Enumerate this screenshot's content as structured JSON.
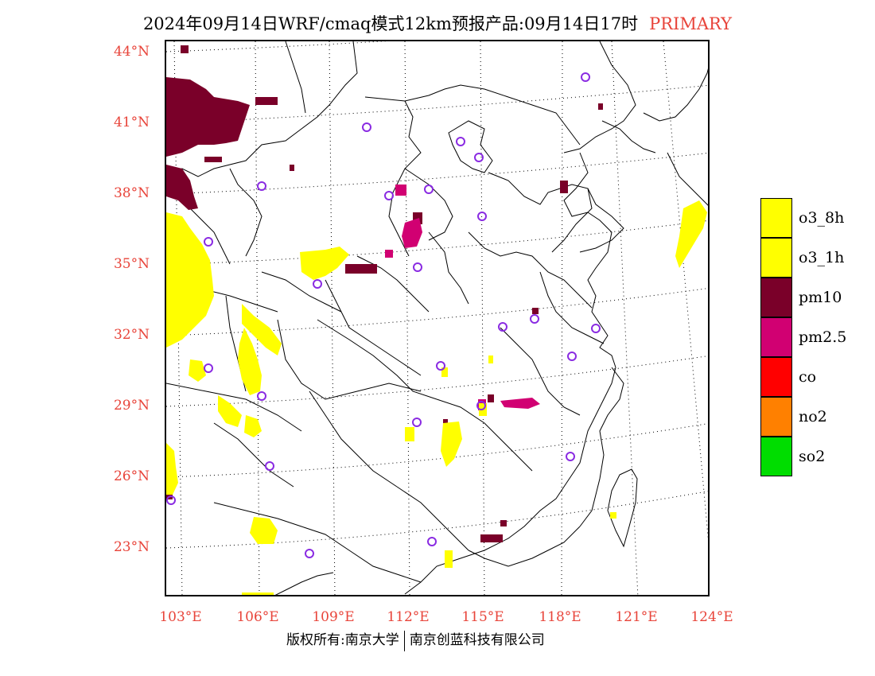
{
  "title": {
    "text": "2024年09月14日WRF/cmaq模式12km预报产品:09月14日17时",
    "tag": "PRIMARY",
    "tag_color": "#e8443a"
  },
  "axes": {
    "latitude_labels": [
      "44°N",
      "41°N",
      "38°N",
      "35°N",
      "32°N",
      "29°N",
      "26°N",
      "23°N"
    ],
    "longitude_labels": [
      "103°E",
      "106°E",
      "109°E",
      "112°E",
      "115°E",
      "118°E",
      "121°E",
      "124°E"
    ],
    "label_color": "#e8443a"
  },
  "legend": {
    "items": [
      {
        "label": "o3_8h",
        "color": "#ffff00"
      },
      {
        "label": "o3_1h",
        "color": "#ffff00"
      },
      {
        "label": "pm10",
        "color": "#7a0029"
      },
      {
        "label": "pm2.5",
        "color": "#d10072"
      },
      {
        "label": "co",
        "color": "#ff0000"
      },
      {
        "label": "no2",
        "color": "#ff8000"
      },
      {
        "label": "so2",
        "color": "#00dd00"
      }
    ]
  },
  "footer": {
    "left": "版权所有:南京大学",
    "right": "南京创蓝科技有限公司"
  },
  "colors": {
    "o3": "#ffff00",
    "pm10": "#7a0029",
    "pm25": "#d10072",
    "city_marker": "#8a2be2",
    "border": "#000000",
    "grid": "#000000"
  }
}
